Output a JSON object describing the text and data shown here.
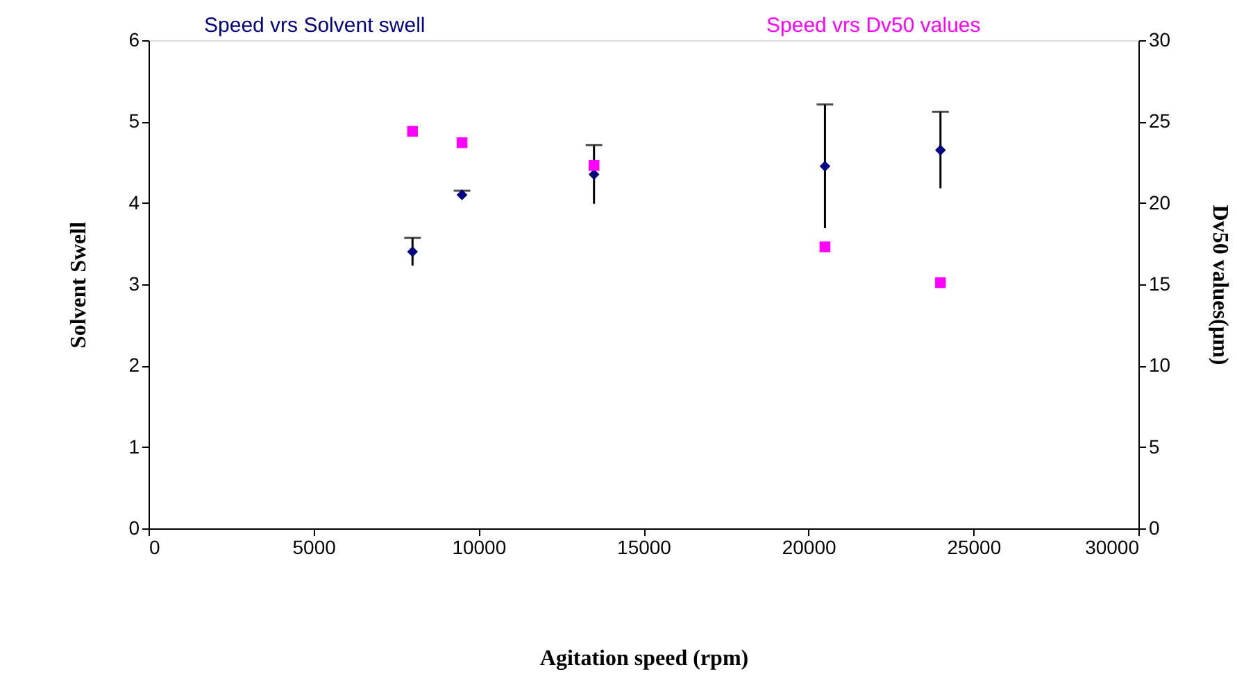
{
  "chart_data": {
    "type": "scatter",
    "xlabel": "Agitation speed (rpm)",
    "ylabel": "Solvent Swell",
    "y2label": "Dv50 values(µm)",
    "x": [
      8000,
      9500,
      13500,
      20500,
      24000
    ],
    "series": [
      {
        "name": "Speed vrs Solvent swell",
        "color": "#000080",
        "marker": "diamond",
        "values": [
          3.4,
          4.1,
          4.35,
          4.45,
          4.65
        ],
        "errors": [
          0.17,
          0.05,
          0.36,
          0.76,
          0.47
        ]
      },
      {
        "name": "Speed vrs Dv50 values",
        "color": "#ff00ff",
        "marker": "square",
        "axis": "y2",
        "values": [
          24.4,
          23.7,
          22.3,
          17.3,
          15.1
        ]
      }
    ],
    "xlim": [
      0,
      30000
    ],
    "xticks": [
      0,
      5000,
      10000,
      15000,
      20000,
      25000,
      30000
    ],
    "ylim": [
      0,
      6
    ],
    "yticks": [
      0,
      1,
      2,
      3,
      4,
      5,
      6
    ],
    "y2lim": [
      0,
      30
    ],
    "y2ticks": [
      0,
      5,
      10,
      15,
      20,
      25,
      30
    ],
    "grid": false,
    "legend": "top"
  }
}
